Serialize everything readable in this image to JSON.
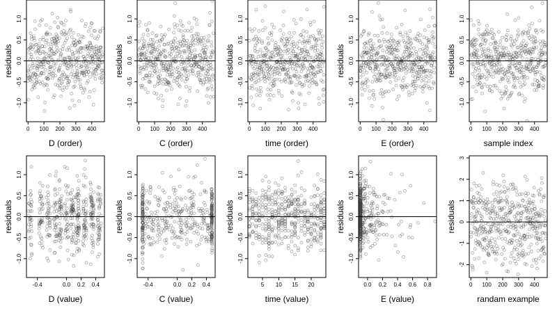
{
  "chart_data": [
    {
      "type": "scatter",
      "xlabel": "D (order)",
      "ylabel": "residuals",
      "xlim": [
        -10,
        480
      ],
      "ylim": [
        -1.45,
        1.45
      ],
      "xticks": [
        "0",
        "100",
        "200",
        "300",
        "400"
      ],
      "xtick_values": [
        0,
        100,
        200,
        300,
        400
      ],
      "yticks": [
        "-1.0",
        "-0.5",
        "0.0",
        "0.5",
        "1.0"
      ],
      "ytick_values": [
        -1.0,
        -0.5,
        0.0,
        0.5,
        1.0
      ],
      "hline": 0.0,
      "seed": 11,
      "n": 470,
      "xdist": {
        "kind": "index",
        "min": 0,
        "max": 470
      },
      "ysd": 0.42
    },
    {
      "type": "scatter",
      "xlabel": "C (order)",
      "ylabel": "residuals",
      "xlim": [
        -10,
        480
      ],
      "ylim": [
        -1.45,
        1.45
      ],
      "xticks": [
        "0",
        "100",
        "200",
        "300",
        "400"
      ],
      "xtick_values": [
        0,
        100,
        200,
        300,
        400
      ],
      "yticks": [
        "-1.0",
        "-0.5",
        "0.0",
        "0.5",
        "1.0"
      ],
      "ytick_values": [
        -1.0,
        -0.5,
        0.0,
        0.5,
        1.0
      ],
      "hline": 0.0,
      "seed": 23,
      "n": 470,
      "xdist": {
        "kind": "index",
        "min": 0,
        "max": 470
      },
      "ysd": 0.42
    },
    {
      "type": "scatter",
      "xlabel": "time (order)",
      "ylabel": "residuals",
      "xlim": [
        -10,
        480
      ],
      "ylim": [
        -1.45,
        1.45
      ],
      "xticks": [
        "0",
        "100",
        "200",
        "300",
        "400"
      ],
      "xtick_values": [
        0,
        100,
        200,
        300,
        400
      ],
      "yticks": [
        "-1.0",
        "-0.5",
        "0.0",
        "0.5",
        "1.0"
      ],
      "ytick_values": [
        -1.0,
        -0.5,
        0.0,
        0.5,
        1.0
      ],
      "hline": 0.0,
      "seed": 37,
      "n": 470,
      "xdist": {
        "kind": "index",
        "min": 0,
        "max": 470
      },
      "ysd": 0.42
    },
    {
      "type": "scatter",
      "xlabel": "E (order)",
      "ylabel": "residuals",
      "xlim": [
        -10,
        480
      ],
      "ylim": [
        -1.45,
        1.45
      ],
      "xticks": [
        "0",
        "100",
        "200",
        "300",
        "400"
      ],
      "xtick_values": [
        0,
        100,
        200,
        300,
        400
      ],
      "yticks": [
        "-1.0",
        "-0.5",
        "0.0",
        "0.5",
        "1.0"
      ],
      "ytick_values": [
        -1.0,
        -0.5,
        0.0,
        0.5,
        1.0
      ],
      "hline": 0.0,
      "seed": 41,
      "n": 470,
      "xdist": {
        "kind": "index",
        "min": 0,
        "max": 470
      },
      "ysd": 0.42
    },
    {
      "type": "scatter",
      "xlabel": "sample index",
      "ylabel": "residuals",
      "xlim": [
        -10,
        480
      ],
      "ylim": [
        -1.45,
        1.45
      ],
      "xticks": [
        "0",
        "100",
        "200",
        "300",
        "400"
      ],
      "xtick_values": [
        0,
        100,
        200,
        300,
        400
      ],
      "yticks": [
        "-1.0",
        "-0.5",
        "0.0",
        "0.5",
        "1.0"
      ],
      "ytick_values": [
        -1.0,
        -0.5,
        0.0,
        0.5,
        1.0
      ],
      "hline": 0.0,
      "seed": 53,
      "n": 470,
      "xdist": {
        "kind": "index",
        "min": 0,
        "max": 470
      },
      "ysd": 0.42
    },
    {
      "type": "scatter",
      "xlabel": "D (value)",
      "ylabel": "residuals",
      "xlim": [
        -0.55,
        0.52
      ],
      "ylim": [
        -1.45,
        1.45
      ],
      "xticks": [
        "-0.4",
        "0.0",
        "0.2",
        "0.4"
      ],
      "xtick_values": [
        -0.4,
        0.0,
        0.2,
        0.4
      ],
      "yticks": [
        "-1.0",
        "-0.5",
        "0.0",
        "0.5",
        "1.0"
      ],
      "ytick_values": [
        -1.0,
        -0.5,
        0.0,
        0.5,
        1.0
      ],
      "hline": 0.0,
      "seed": 67,
      "n": 470,
      "xdist": {
        "kind": "clusters",
        "centers": [
          -0.5,
          -0.35,
          -0.25,
          -0.15,
          -0.08,
          0.0,
          0.08,
          0.15,
          0.25,
          0.35,
          0.45
        ],
        "spread": 0.025
      },
      "ysd": 0.42
    },
    {
      "type": "scatter",
      "xlabel": "C (value)",
      "ylabel": "residuals",
      "xlim": [
        -0.55,
        0.52
      ],
      "ylim": [
        -1.45,
        1.45
      ],
      "xticks": [
        "-0.4",
        "0.0",
        "0.2",
        "0.4"
      ],
      "xtick_values": [
        -0.4,
        0.0,
        0.2,
        0.4
      ],
      "yticks": [
        "-1.0",
        "-0.5",
        "0.0",
        "0.5",
        "1.0"
      ],
      "ytick_values": [
        -1.0,
        -0.5,
        0.0,
        0.5,
        1.0
      ],
      "hline": 0.0,
      "seed": 71,
      "n": 470,
      "xdist": {
        "kind": "edges",
        "left": -0.48,
        "right": 0.48,
        "edge_frac": 0.4
      },
      "ysd": 0.42
    },
    {
      "type": "scatter",
      "xlabel": "time (value)",
      "ylabel": "residuals",
      "xlim": [
        0.5,
        24.5
      ],
      "ylim": [
        -1.45,
        1.45
      ],
      "xticks": [
        "5",
        "10",
        "15",
        "20"
      ],
      "xtick_values": [
        5,
        10,
        15,
        20
      ],
      "yticks": [
        "-1.0",
        "-0.5",
        "0.0",
        "0.5",
        "1.0"
      ],
      "ytick_values": [
        -1.0,
        -0.5,
        0.0,
        0.5,
        1.0
      ],
      "hline": 0.0,
      "seed": 83,
      "n": 470,
      "xdist": {
        "kind": "integers",
        "min": 1,
        "max": 24
      },
      "ysd": 0.42
    },
    {
      "type": "scatter",
      "xlabel": "E (value)",
      "ylabel": "residuals",
      "xlim": [
        -0.12,
        0.92
      ],
      "ylim": [
        -1.45,
        1.45
      ],
      "xticks": [
        "0.0",
        "0.2",
        "0.4",
        "0.6",
        "0.8"
      ],
      "xtick_values": [
        0.0,
        0.2,
        0.4,
        0.6,
        0.8
      ],
      "yticks": [
        "-1.0",
        "-0.5",
        "0.0",
        "0.5",
        "1.0"
      ],
      "ytick_values": [
        -1.0,
        -0.5,
        0.0,
        0.5,
        1.0
      ],
      "hline": 0.0,
      "seed": 97,
      "n": 470,
      "xdist": {
        "kind": "skewed",
        "base": -0.1,
        "base_frac": 0.55,
        "scale": 0.18
      },
      "ysd": 0.42
    },
    {
      "type": "scatter",
      "xlabel": "randam example",
      "ylabel": "residuals",
      "xlim": [
        -10,
        480
      ],
      "ylim": [
        -2.6,
        3.1
      ],
      "xticks": [
        "0",
        "100",
        "200",
        "300",
        "400"
      ],
      "xtick_values": [
        0,
        100,
        200,
        300,
        400
      ],
      "yticks": [
        "-2",
        "-1",
        "0",
        "1",
        "2",
        "3"
      ],
      "ytick_values": [
        -2,
        -1,
        0,
        1,
        2,
        3
      ],
      "hline": 0.0,
      "seed": 101,
      "n": 470,
      "xdist": {
        "kind": "index",
        "min": 0,
        "max": 470
      },
      "ysd": 1.0
    }
  ]
}
